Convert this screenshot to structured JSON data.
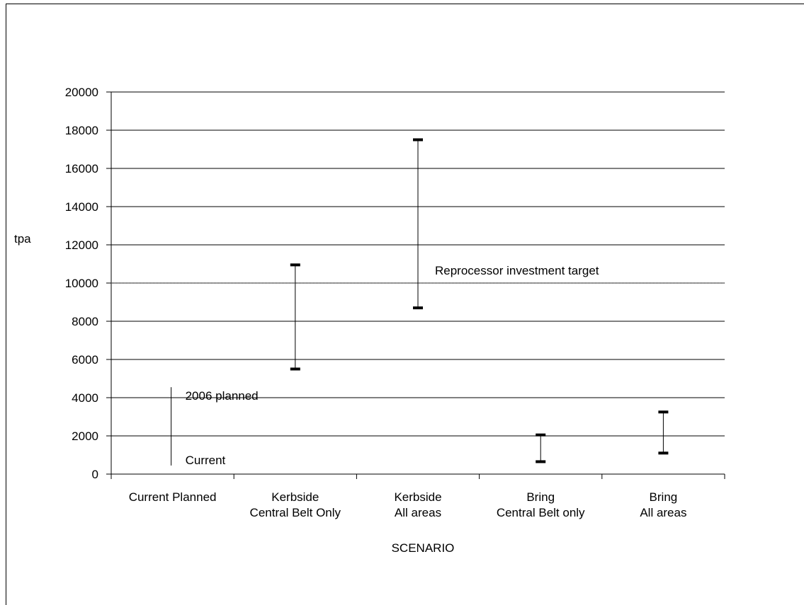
{
  "chart_data": {
    "type": "range",
    "title": "",
    "xlabel": "SCENARIO",
    "ylabel": "tpa",
    "ylim": [
      0,
      20000
    ],
    "yticks": [
      0,
      2000,
      4000,
      6000,
      8000,
      10000,
      12000,
      14000,
      16000,
      18000,
      20000
    ],
    "grid": true,
    "categories": [
      {
        "lines": [
          "Current Planned"
        ]
      },
      {
        "lines": [
          "Kerbside",
          "Central Belt Only"
        ]
      },
      {
        "lines": [
          "Kerbside",
          "All areas"
        ]
      },
      {
        "lines": [
          "Bring",
          "Central Belt only"
        ]
      },
      {
        "lines": [
          "Bring",
          "All areas"
        ]
      }
    ],
    "ranges": [
      {
        "low": 450,
        "high": 4550,
        "capped": false,
        "low_label": "Current",
        "high_label": "2006 planned"
      },
      {
        "low": 5500,
        "high": 10950,
        "capped": true
      },
      {
        "low": 8700,
        "high": 17500,
        "capped": true
      },
      {
        "low": 650,
        "high": 2050,
        "capped": true
      },
      {
        "low": 1100,
        "high": 3250,
        "capped": true
      }
    ],
    "reference_line": {
      "value": 10000,
      "label": "Reprocessor investment target"
    },
    "colors": {
      "line": "#000000",
      "grid": "#000000",
      "reference": "#555555"
    }
  }
}
